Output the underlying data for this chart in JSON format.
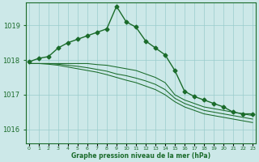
{
  "xlabel": "Graphe pression niveau de la mer (hPa)",
  "background_color": "#cce8e8",
  "grid_color": "#99cccc",
  "line_color": "#1a6b2a",
  "ylim": [
    1015.6,
    1019.65
  ],
  "yticks": [
    1016,
    1017,
    1018,
    1019
  ],
  "hours": [
    0,
    1,
    2,
    3,
    4,
    5,
    6,
    7,
    8,
    9,
    10,
    11,
    12,
    13,
    14,
    15,
    16,
    17,
    18,
    19,
    20,
    21,
    22,
    23
  ],
  "main_series": [
    1017.95,
    1018.05,
    1018.1,
    1018.35,
    1018.5,
    1018.6,
    1018.7,
    1018.8,
    1018.9,
    1019.55,
    1019.1,
    1018.95,
    1018.55,
    1018.35,
    1018.15,
    1017.7,
    1017.1,
    1016.95,
    1016.85,
    1016.75,
    1016.65,
    1016.5,
    1016.45,
    1016.45
  ],
  "bg_series": [
    [
      1017.9,
      1017.9,
      1017.9,
      1017.9,
      1017.9,
      1017.9,
      1017.9,
      1017.87,
      1017.85,
      1017.8,
      1017.75,
      1017.7,
      1017.6,
      1017.5,
      1017.35,
      1017.0,
      1016.85,
      1016.75,
      1016.65,
      1016.6,
      1016.55,
      1016.5,
      1016.45,
      1016.4
    ],
    [
      1017.9,
      1017.9,
      1017.9,
      1017.88,
      1017.85,
      1017.82,
      1017.78,
      1017.73,
      1017.68,
      1017.6,
      1017.55,
      1017.48,
      1017.4,
      1017.3,
      1017.15,
      1016.9,
      1016.75,
      1016.65,
      1016.55,
      1016.5,
      1016.45,
      1016.4,
      1016.35,
      1016.3
    ],
    [
      1017.9,
      1017.9,
      1017.88,
      1017.85,
      1017.8,
      1017.75,
      1017.7,
      1017.65,
      1017.58,
      1017.5,
      1017.42,
      1017.35,
      1017.25,
      1017.15,
      1017.0,
      1016.8,
      1016.65,
      1016.55,
      1016.45,
      1016.4,
      1016.35,
      1016.3,
      1016.25,
      1016.2
    ]
  ],
  "marker": "D",
  "markersize": 2.5,
  "main_linewidth": 1.0,
  "bg_linewidth": 0.75
}
